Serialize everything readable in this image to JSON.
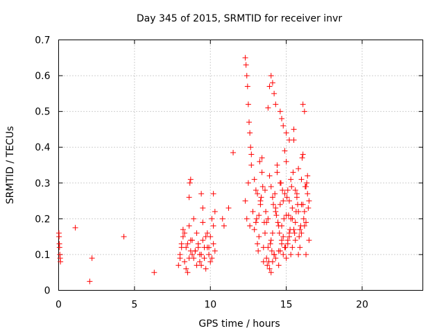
{
  "chart_data": {
    "type": "scatter",
    "title": "Day 345 of 2015, SRMTID for receiver invr",
    "xlabel": "GPS time / hours",
    "ylabel": "SRMTID / TECUs",
    "xlim": [
      0,
      24
    ],
    "ylim": [
      0,
      0.7
    ],
    "xticks": [
      "0",
      "5",
      "10",
      "15",
      "20"
    ],
    "yticks": [
      "0",
      "0.1",
      "0.2",
      "0.3",
      "0.4",
      "0.5",
      "0.6",
      "0.7"
    ],
    "grid": true,
    "marker": "+",
    "color": "#ff0000",
    "series": [
      {
        "name": "SRMTID",
        "x": [
          0.02,
          0.05,
          0.08,
          0.1,
          0.12,
          0.03,
          0.06,
          1.1,
          2.2,
          2.05,
          4.3,
          6.3,
          7.9,
          8.0,
          8.1,
          8.2,
          8.3,
          8.4,
          8.5,
          8.6,
          8.7,
          8.8,
          8.9,
          9.0,
          9.1,
          9.2,
          9.3,
          9.4,
          9.5,
          9.6,
          9.7,
          9.8,
          9.9,
          10.0,
          10.1,
          10.2,
          10.3,
          8.0,
          8.2,
          8.4,
          8.6,
          8.8,
          9.0,
          9.2,
          9.4,
          9.6,
          9.8,
          10.0,
          10.2,
          8.1,
          8.5,
          8.9,
          9.3,
          9.7,
          10.1,
          8.3,
          8.7,
          9.1,
          9.5,
          9.9,
          8.6,
          8.65,
          8.7,
          9.4,
          9.5,
          10.2,
          10.3,
          10.8,
          10.9,
          11.2,
          11.5,
          12.3,
          12.35,
          12.4,
          12.45,
          12.5,
          12.55,
          12.6,
          12.65,
          12.7,
          12.3,
          12.4,
          12.5,
          12.6,
          12.7,
          12.8,
          12.9,
          13.0,
          13.1,
          13.2,
          13.3,
          13.4,
          13.5,
          13.6,
          13.7,
          13.8,
          13.9,
          14.0,
          14.1,
          14.2,
          14.3,
          14.4,
          14.5,
          14.6,
          14.7,
          14.8,
          14.9,
          15.0,
          15.1,
          15.2,
          15.3,
          15.4,
          15.5,
          15.6,
          15.7,
          15.8,
          15.9,
          16.0,
          16.1,
          16.2,
          16.3,
          16.4,
          16.5,
          12.9,
          13.1,
          13.3,
          13.5,
          13.7,
          13.9,
          14.1,
          14.3,
          14.5,
          14.7,
          14.9,
          15.1,
          15.3,
          15.5,
          15.7,
          15.9,
          16.1,
          16.3,
          16.5,
          13.0,
          13.2,
          13.4,
          13.6,
          13.8,
          14.0,
          14.2,
          14.4,
          14.6,
          14.8,
          15.0,
          15.2,
          15.4,
          15.6,
          15.8,
          16.0,
          16.2,
          16.4,
          13.05,
          13.25,
          13.45,
          13.65,
          13.85,
          14.05,
          14.25,
          14.45,
          14.65,
          14.85,
          15.05,
          15.25,
          15.45,
          15.65,
          15.85,
          16.05,
          16.25,
          16.45,
          13.15,
          13.35,
          13.55,
          13.75,
          13.95,
          14.15,
          14.35,
          14.55,
          14.75,
          14.95,
          15.15,
          15.35,
          15.55,
          15.75,
          15.95,
          16.15,
          16.35,
          13.8,
          13.9,
          14.0,
          14.1,
          14.2,
          14.3,
          14.6,
          14.7,
          14.8,
          15.0,
          15.2,
          15.5,
          16.1,
          16.2,
          14.0,
          14.1,
          14.2,
          14.3,
          14.5,
          14.6,
          14.7,
          14.8,
          14.9,
          15.0,
          15.1,
          15.2,
          15.3,
          15.4,
          15.6,
          15.8,
          16.0,
          16.3
        ],
        "y": [
          0.16,
          0.13,
          0.1,
          0.09,
          0.08,
          0.15,
          0.12,
          0.175,
          0.09,
          0.025,
          0.15,
          0.05,
          0.07,
          0.09,
          0.12,
          0.15,
          0.08,
          0.06,
          0.13,
          0.18,
          0.14,
          0.1,
          0.09,
          0.11,
          0.16,
          0.12,
          0.08,
          0.1,
          0.14,
          0.09,
          0.06,
          0.12,
          0.1,
          0.15,
          0.2,
          0.13,
          0.11,
          0.1,
          0.17,
          0.12,
          0.09,
          0.14,
          0.11,
          0.13,
          0.07,
          0.12,
          0.16,
          0.08,
          0.18,
          0.13,
          0.05,
          0.2,
          0.1,
          0.15,
          0.09,
          0.16,
          0.11,
          0.07,
          0.19,
          0.12,
          0.26,
          0.3,
          0.31,
          0.27,
          0.23,
          0.27,
          0.22,
          0.2,
          0.18,
          0.23,
          0.385,
          0.65,
          0.63,
          0.6,
          0.57,
          0.52,
          0.47,
          0.44,
          0.4,
          0.38,
          0.25,
          0.2,
          0.3,
          0.18,
          0.35,
          0.22,
          0.31,
          0.19,
          0.27,
          0.15,
          0.24,
          0.33,
          0.12,
          0.28,
          0.09,
          0.2,
          0.32,
          0.14,
          0.26,
          0.1,
          0.23,
          0.35,
          0.18,
          0.3,
          0.13,
          0.25,
          0.39,
          0.21,
          0.28,
          0.16,
          0.31,
          0.23,
          0.42,
          0.19,
          0.27,
          0.34,
          0.17,
          0.24,
          0.38,
          0.22,
          0.29,
          0.32,
          0.25,
          0.17,
          0.13,
          0.25,
          0.08,
          0.19,
          0.06,
          0.16,
          0.22,
          0.11,
          0.18,
          0.27,
          0.14,
          0.2,
          0.17,
          0.26,
          0.12,
          0.24,
          0.19,
          0.14,
          0.28,
          0.21,
          0.37,
          0.16,
          0.12,
          0.29,
          0.1,
          0.33,
          0.24,
          0.15,
          0.36,
          0.25,
          0.2,
          0.28,
          0.22,
          0.31,
          0.18,
          0.27,
          0.2,
          0.36,
          0.29,
          0.22,
          0.08,
          0.11,
          0.27,
          0.19,
          0.3,
          0.2,
          0.26,
          0.17,
          0.33,
          0.22,
          0.15,
          0.37,
          0.29,
          0.23,
          0.11,
          0.26,
          0.19,
          0.07,
          0.13,
          0.24,
          0.21,
          0.16,
          0.28,
          0.12,
          0.21,
          0.29,
          0.16,
          0.24,
          0.18,
          0.2,
          0.3,
          0.51,
          0.57,
          0.6,
          0.58,
          0.55,
          0.52,
          0.5,
          0.48,
          0.46,
          0.44,
          0.42,
          0.45,
          0.52,
          0.5,
          0.05,
          0.08,
          0.1,
          0.09,
          0.07,
          0.11,
          0.14,
          0.1,
          0.12,
          0.09,
          0.13,
          0.15,
          0.1,
          0.12,
          0.14,
          0.1,
          0.16,
          0.1
        ]
      }
    ]
  }
}
